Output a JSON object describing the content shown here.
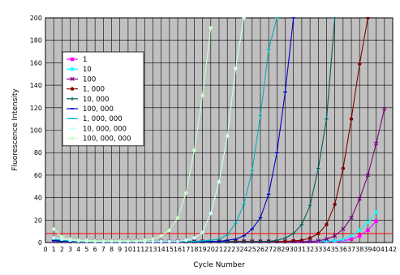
{
  "chart_data": {
    "type": "line",
    "title": "",
    "xlabel": "Cycle Number",
    "ylabel": "Fluorescence Intensity",
    "xlim": [
      0,
      42
    ],
    "ylim": [
      0,
      200
    ],
    "x_ticks": [
      0,
      1,
      2,
      3,
      4,
      5,
      6,
      7,
      8,
      9,
      10,
      11,
      12,
      13,
      14,
      15,
      16,
      17,
      18,
      19,
      20,
      21,
      22,
      23,
      24,
      25,
      26,
      27,
      28,
      29,
      30,
      31,
      32,
      33,
      34,
      35,
      36,
      37,
      38,
      39,
      40,
      41,
      42
    ],
    "y_ticks": [
      0,
      20,
      40,
      60,
      80,
      100,
      120,
      140,
      160,
      180,
      200
    ],
    "grid": true,
    "background": "#c0c0c0",
    "threshold": {
      "value": 8,
      "color": "#ff0000"
    },
    "legend": {
      "position": "left-middle"
    },
    "series": [
      {
        "name": "1",
        "color": "#ff00ff",
        "marker": "square",
        "points": [
          [
            1,
            1
          ],
          [
            2,
            0.5
          ],
          [
            3,
            0.3
          ],
          [
            4,
            0.4
          ],
          [
            5,
            0.2
          ],
          [
            6,
            0.3
          ],
          [
            7,
            0.2
          ],
          [
            8,
            0.3
          ],
          [
            9,
            0.2
          ],
          [
            10,
            0.3
          ],
          [
            11,
            0.2
          ],
          [
            12,
            0.3
          ],
          [
            13,
            0.2
          ],
          [
            14,
            0.3
          ],
          [
            15,
            0.4
          ],
          [
            16,
            0.3
          ],
          [
            17,
            0.5
          ],
          [
            18,
            0.4
          ],
          [
            19,
            0.5
          ],
          [
            20,
            0.4
          ],
          [
            21,
            0.5
          ],
          [
            22,
            0.6
          ],
          [
            23,
            0.5
          ],
          [
            24,
            0.6
          ],
          [
            25,
            0.5
          ],
          [
            26,
            0.6
          ],
          [
            27,
            0.7
          ],
          [
            28,
            0.6
          ],
          [
            29,
            0.7
          ],
          [
            30,
            0.8
          ],
          [
            31,
            0.7
          ],
          [
            32,
            0.8
          ],
          [
            33,
            0.9
          ],
          [
            34,
            1
          ],
          [
            35,
            1.2
          ],
          [
            36,
            1.5
          ],
          [
            37,
            3
          ],
          [
            38,
            6
          ],
          [
            39,
            11
          ],
          [
            40,
            19
          ]
        ]
      },
      {
        "name": "10",
        "color": "#00ffff",
        "marker": "star",
        "points": [
          [
            1,
            2
          ],
          [
            2,
            1
          ],
          [
            3,
            0.5
          ],
          [
            4,
            0.5
          ],
          [
            5,
            0.4
          ],
          [
            6,
            0.4
          ],
          [
            7,
            0.4
          ],
          [
            8,
            0.4
          ],
          [
            9,
            0.4
          ],
          [
            10,
            0.4
          ],
          [
            11,
            0.5
          ],
          [
            12,
            0.5
          ],
          [
            13,
            0.5
          ],
          [
            14,
            0.5
          ],
          [
            15,
            0.6
          ],
          [
            16,
            0.6
          ],
          [
            17,
            0.6
          ],
          [
            18,
            0.6
          ],
          [
            19,
            0.7
          ],
          [
            20,
            0.7
          ],
          [
            21,
            0.7
          ],
          [
            22,
            0.7
          ],
          [
            23,
            0.8
          ],
          [
            24,
            0.8
          ],
          [
            25,
            0.8
          ],
          [
            26,
            0.8
          ],
          [
            27,
            0.9
          ],
          [
            28,
            0.9
          ],
          [
            29,
            0.9
          ],
          [
            30,
            1
          ],
          [
            31,
            1
          ],
          [
            32,
            1.1
          ],
          [
            33,
            1.2
          ],
          [
            34,
            1.3
          ],
          [
            35,
            1.6
          ],
          [
            36,
            2.5
          ],
          [
            37,
            6
          ],
          [
            38,
            11
          ],
          [
            39,
            18
          ],
          [
            40,
            27
          ]
        ]
      },
      {
        "name": "100",
        "color": "#800080",
        "marker": "x",
        "points": [
          [
            1,
            3
          ],
          [
            2,
            1.5
          ],
          [
            3,
            1
          ],
          [
            4,
            1
          ],
          [
            5,
            1
          ],
          [
            6,
            1
          ],
          [
            7,
            1
          ],
          [
            8,
            1
          ],
          [
            9,
            1
          ],
          [
            10,
            1
          ],
          [
            11,
            1
          ],
          [
            12,
            1
          ],
          [
            13,
            1
          ],
          [
            14,
            1
          ],
          [
            15,
            1
          ],
          [
            16,
            1
          ],
          [
            17,
            1
          ],
          [
            18,
            1
          ],
          [
            19,
            1
          ],
          [
            20,
            1
          ],
          [
            21,
            1
          ],
          [
            22,
            1
          ],
          [
            23,
            1
          ],
          [
            24,
            1
          ],
          [
            25,
            1
          ],
          [
            26,
            1
          ],
          [
            27,
            1
          ],
          [
            28,
            1
          ],
          [
            29,
            1
          ],
          [
            30,
            1
          ],
          [
            31,
            1
          ],
          [
            32,
            1
          ],
          [
            33,
            1.5
          ],
          [
            34,
            3
          ],
          [
            35,
            6
          ],
          [
            36,
            12
          ],
          [
            37,
            22
          ],
          [
            38,
            39
          ],
          [
            39,
            60
          ],
          [
            40,
            88
          ],
          [
            41,
            119
          ]
        ]
      },
      {
        "name": "1, 000",
        "color": "#800000",
        "marker": "circle",
        "points": [
          [
            1,
            2
          ],
          [
            2,
            1.5
          ],
          [
            3,
            1
          ],
          [
            4,
            1
          ],
          [
            5,
            1
          ],
          [
            6,
            1
          ],
          [
            7,
            1
          ],
          [
            8,
            1
          ],
          [
            9,
            1
          ],
          [
            10,
            1
          ],
          [
            11,
            1
          ],
          [
            12,
            1
          ],
          [
            13,
            1
          ],
          [
            14,
            1
          ],
          [
            15,
            1
          ],
          [
            16,
            1
          ],
          [
            17,
            1
          ],
          [
            18,
            1
          ],
          [
            19,
            1
          ],
          [
            20,
            1
          ],
          [
            21,
            1
          ],
          [
            22,
            1
          ],
          [
            23,
            1
          ],
          [
            24,
            1
          ],
          [
            25,
            1
          ],
          [
            26,
            1
          ],
          [
            27,
            1
          ],
          [
            28,
            1
          ],
          [
            29,
            1
          ],
          [
            30,
            1.5
          ],
          [
            31,
            2
          ],
          [
            32,
            4
          ],
          [
            33,
            8
          ],
          [
            34,
            16
          ],
          [
            35,
            34
          ],
          [
            36,
            66
          ],
          [
            37,
            110
          ],
          [
            38,
            159
          ],
          [
            39,
            200
          ]
        ]
      },
      {
        "name": "10, 000",
        "color": "#006060",
        "marker": "plus",
        "points": [
          [
            1,
            1
          ],
          [
            2,
            0.8
          ],
          [
            3,
            0.6
          ],
          [
            4,
            0.6
          ],
          [
            5,
            0.6
          ],
          [
            6,
            0.6
          ],
          [
            7,
            0.6
          ],
          [
            8,
            0.6
          ],
          [
            9,
            0.6
          ],
          [
            10,
            0.6
          ],
          [
            11,
            0.6
          ],
          [
            12,
            0.6
          ],
          [
            13,
            0.6
          ],
          [
            14,
            0.6
          ],
          [
            15,
            0.6
          ],
          [
            16,
            0.6
          ],
          [
            17,
            0.6
          ],
          [
            18,
            0.6
          ],
          [
            19,
            0.6
          ],
          [
            20,
            0.6
          ],
          [
            21,
            0.6
          ],
          [
            22,
            0.6
          ],
          [
            23,
            0.6
          ],
          [
            24,
            0.6
          ],
          [
            25,
            0.7
          ],
          [
            26,
            0.8
          ],
          [
            27,
            1
          ],
          [
            28,
            2
          ],
          [
            29,
            4
          ],
          [
            30,
            8
          ],
          [
            31,
            16
          ],
          [
            32,
            33
          ],
          [
            33,
            66
          ],
          [
            34,
            110
          ],
          [
            35,
            200
          ]
        ]
      },
      {
        "name": "100, 000",
        "color": "#0000cc",
        "marker": "dash",
        "points": [
          [
            1,
            2
          ],
          [
            2,
            1.2
          ],
          [
            3,
            1
          ],
          [
            4,
            1
          ],
          [
            5,
            1
          ],
          [
            6,
            1
          ],
          [
            7,
            1
          ],
          [
            8,
            1
          ],
          [
            9,
            1
          ],
          [
            10,
            1
          ],
          [
            11,
            1
          ],
          [
            12,
            1
          ],
          [
            13,
            1
          ],
          [
            14,
            1
          ],
          [
            15,
            1
          ],
          [
            16,
            1
          ],
          [
            17,
            1
          ],
          [
            18,
            1
          ],
          [
            19,
            1
          ],
          [
            20,
            1
          ],
          [
            21,
            1
          ],
          [
            22,
            2
          ],
          [
            23,
            3
          ],
          [
            24,
            6
          ],
          [
            25,
            12
          ],
          [
            26,
            22
          ],
          [
            27,
            43
          ],
          [
            28,
            80
          ],
          [
            29,
            134
          ],
          [
            30,
            200
          ]
        ]
      },
      {
        "name": "1, 000, 000",
        "color": "#00b0c0",
        "marker": "dash",
        "points": [
          [
            1,
            3
          ],
          [
            2,
            2
          ],
          [
            3,
            1.5
          ],
          [
            4,
            1.2
          ],
          [
            5,
            1
          ],
          [
            6,
            1
          ],
          [
            7,
            1
          ],
          [
            8,
            1
          ],
          [
            9,
            1
          ],
          [
            10,
            1
          ],
          [
            11,
            1
          ],
          [
            12,
            1
          ],
          [
            13,
            1
          ],
          [
            14,
            1
          ],
          [
            15,
            1
          ],
          [
            16,
            1
          ],
          [
            17,
            1
          ],
          [
            18,
            1
          ],
          [
            19,
            1.5
          ],
          [
            20,
            2
          ],
          [
            21,
            3
          ],
          [
            22,
            7
          ],
          [
            23,
            17
          ],
          [
            24,
            34
          ],
          [
            25,
            64
          ],
          [
            26,
            113
          ],
          [
            27,
            172
          ],
          [
            28,
            200
          ]
        ]
      },
      {
        "name": "10, 000, 000",
        "color": "#ccffff",
        "marker": "circle",
        "points": [
          [
            1,
            4
          ],
          [
            2,
            3
          ],
          [
            3,
            2
          ],
          [
            4,
            1.5
          ],
          [
            5,
            1.2
          ],
          [
            6,
            1
          ],
          [
            7,
            1
          ],
          [
            8,
            1
          ],
          [
            9,
            1
          ],
          [
            10,
            1
          ],
          [
            11,
            1
          ],
          [
            12,
            1
          ],
          [
            13,
            1
          ],
          [
            14,
            1
          ],
          [
            15,
            1
          ],
          [
            16,
            1
          ],
          [
            17,
            2
          ],
          [
            18,
            4
          ],
          [
            19,
            9
          ],
          [
            20,
            26
          ],
          [
            21,
            54
          ],
          [
            22,
            95
          ],
          [
            23,
            155
          ],
          [
            24,
            200
          ]
        ]
      },
      {
        "name": "100, 000, 000",
        "color": "#ccffcc",
        "marker": "circle",
        "points": [
          [
            1,
            12
          ],
          [
            2,
            5
          ],
          [
            3,
            3
          ],
          [
            4,
            2
          ],
          [
            5,
            2
          ],
          [
            6,
            1.5
          ],
          [
            7,
            1.5
          ],
          [
            8,
            1.5
          ],
          [
            9,
            1.5
          ],
          [
            10,
            1.5
          ],
          [
            11,
            1.5
          ],
          [
            12,
            2
          ],
          [
            13,
            3
          ],
          [
            14,
            6
          ],
          [
            15,
            11
          ],
          [
            16,
            22
          ],
          [
            17,
            44
          ],
          [
            18,
            82
          ],
          [
            19,
            131
          ],
          [
            20,
            191
          ]
        ]
      }
    ]
  }
}
